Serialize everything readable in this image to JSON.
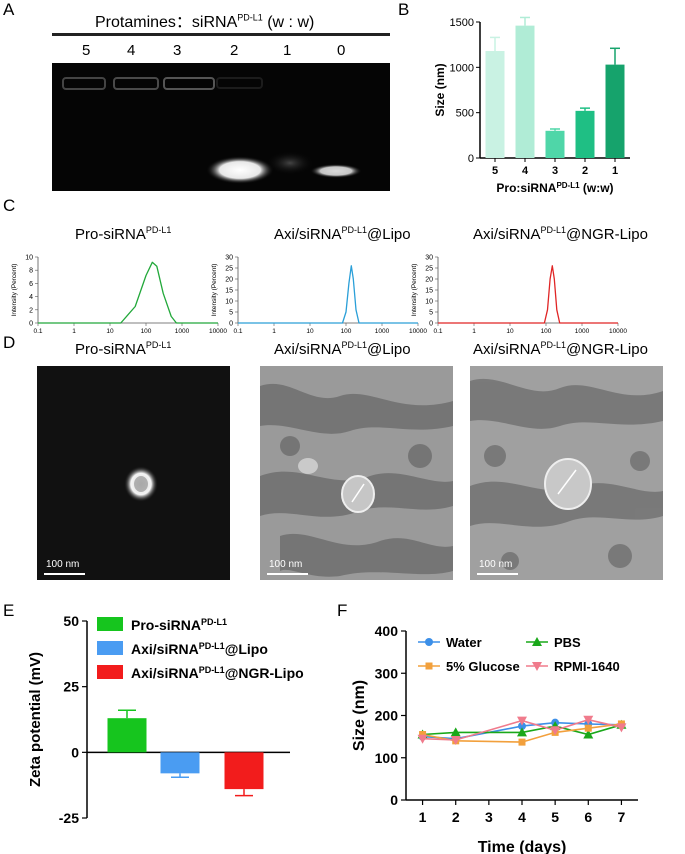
{
  "panel_labels": {
    "a": "A",
    "b": "B",
    "c": "C",
    "d": "D",
    "e": "E",
    "f": "F"
  },
  "gel": {
    "title": "Protamines：siRNA",
    "title_sup": "PD-L1",
    "title_ratio": " (w : w)",
    "lanes": [
      "5",
      "4",
      "3",
      "2",
      "1",
      "0"
    ]
  },
  "chart_data": [
    {
      "panel": "B",
      "type": "bar",
      "categories": [
        "5",
        "4",
        "3",
        "2",
        "1"
      ],
      "values": [
        1180,
        1460,
        300,
        520,
        1030
      ],
      "errors": [
        150,
        90,
        20,
        30,
        180
      ],
      "colors": [
        "#c9f2e3",
        "#b0ecd6",
        "#4fd6a8",
        "#1fbf84",
        "#16a36c"
      ],
      "ylabel": "Size (nm)",
      "xlabel": "Pro:siRNA",
      "xlabel_sup": "PD-L1",
      "xlabel_tail": " (w:w)",
      "ylim": [
        0,
        1500
      ],
      "yticks": [
        "0",
        "500",
        "1000",
        "1500"
      ]
    },
    {
      "panel": "C",
      "type": "line",
      "title": "Pro-siRNA",
      "title_sup": "PD-L1",
      "color": "#22a83a",
      "x": [
        0.1,
        20,
        50,
        100,
        150,
        200,
        300,
        500,
        700,
        1000,
        10000
      ],
      "y": [
        0,
        0,
        2.5,
        7.2,
        9.2,
        8.6,
        4.5,
        1,
        0,
        0,
        0
      ],
      "xlabel": "Size (d.nm)",
      "ylabel": "Intensity (Percent)",
      "yticks": [
        "0",
        "2",
        "4",
        "6",
        "8",
        "10"
      ],
      "xticks": [
        "0.1",
        "1",
        "10",
        "100",
        "1000",
        "10000"
      ],
      "ylim": [
        0,
        10
      ]
    },
    {
      "panel": "C",
      "type": "line",
      "title": "Axi/siRNA",
      "title_sup": "PD-L1",
      "title_tail": "@Lipo",
      "color": "#2a9fd8",
      "x": [
        0.1,
        80,
        100,
        120,
        140,
        160,
        190,
        230,
        10000
      ],
      "y": [
        0,
        0,
        5,
        18,
        26,
        20,
        6,
        0,
        0
      ],
      "xlabel": "Size (d.nm)",
      "ylabel": "Intensity (Percent)",
      "yticks": [
        "0",
        "5",
        "10",
        "15",
        "20",
        "25",
        "30"
      ],
      "xticks": [
        "0.1",
        "1",
        "10",
        "100",
        "1000",
        "10000"
      ],
      "ylim": [
        0,
        30
      ]
    },
    {
      "panel": "C",
      "type": "line",
      "title": "Axi/siRNA",
      "title_sup": "PD-L1",
      "title_tail": "@NGR-Lipo",
      "color": "#e02525",
      "x": [
        0.1,
        90,
        110,
        130,
        150,
        170,
        200,
        240,
        10000
      ],
      "y": [
        0,
        0,
        6,
        20,
        26,
        20,
        6,
        0,
        0
      ],
      "xlabel": "Size (d.nm)",
      "ylabel": "Intensity (Percent)",
      "yticks": [
        "0",
        "5",
        "10",
        "15",
        "20",
        "25",
        "30"
      ],
      "xticks": [
        "0.1",
        "1",
        "10",
        "100",
        "1000",
        "10000"
      ],
      "ylim": [
        0,
        30
      ]
    },
    {
      "panel": "E",
      "type": "bar",
      "series": [
        {
          "name": "Pro-siRNA",
          "sup": "PD-L1",
          "tail": "",
          "value": 13,
          "error": 3,
          "color": "#16c51e"
        },
        {
          "name": "Axi/siRNA",
          "sup": "PD-L1",
          "tail": "@Lipo",
          "value": -8,
          "error": 1.5,
          "color": "#4a9cf2"
        },
        {
          "name": "Axi/siRNA",
          "sup": "PD-L1",
          "tail": "@NGR-Lipo",
          "value": -14,
          "error": 2.5,
          "color": "#f21c1c"
        }
      ],
      "ylabel": "Zeta potential (mV)",
      "ylim": [
        -25,
        50
      ],
      "yticks": [
        "-25",
        "0",
        "25",
        "50"
      ]
    },
    {
      "panel": "F",
      "type": "line",
      "x": [
        1,
        2,
        4,
        5,
        6,
        7
      ],
      "series": [
        {
          "name": "Water",
          "color": "#3c8fe8",
          "marker": "circle",
          "values": [
            150,
            145,
            175,
            183,
            180,
            178
          ]
        },
        {
          "name": "PBS",
          "color": "#1aa81a",
          "marker": "triangle",
          "values": [
            155,
            160,
            160,
            175,
            155,
            178
          ]
        },
        {
          "name": "5% Glucose",
          "color": "#f2a03c",
          "marker": "square",
          "values": [
            155,
            140,
            137,
            160,
            170,
            180
          ]
        },
        {
          "name": "RPMI-1640",
          "color": "#f07b8c",
          "marker": "triangle-down",
          "values": [
            145,
            142,
            188,
            165,
            190,
            172
          ]
        }
      ],
      "xlabel": "Time (days)",
      "ylabel": "Size (nm)",
      "ylim": [
        0,
        400
      ],
      "yticks": [
        "0",
        "100",
        "200",
        "300",
        "400"
      ],
      "xticks": [
        "1",
        "2",
        "3",
        "4",
        "5",
        "6",
        "7"
      ]
    }
  ],
  "tem": {
    "titles": [
      {
        "main": "Pro-siRNA",
        "sup": "PD-L1",
        "tail": ""
      },
      {
        "main": "Axi/siRNA",
        "sup": "PD-L1",
        "tail": "@Lipo"
      },
      {
        "main": "Axi/siRNA",
        "sup": "PD-L1",
        "tail": "@NGR-Lipo"
      }
    ],
    "scalebar": "100 nm"
  }
}
